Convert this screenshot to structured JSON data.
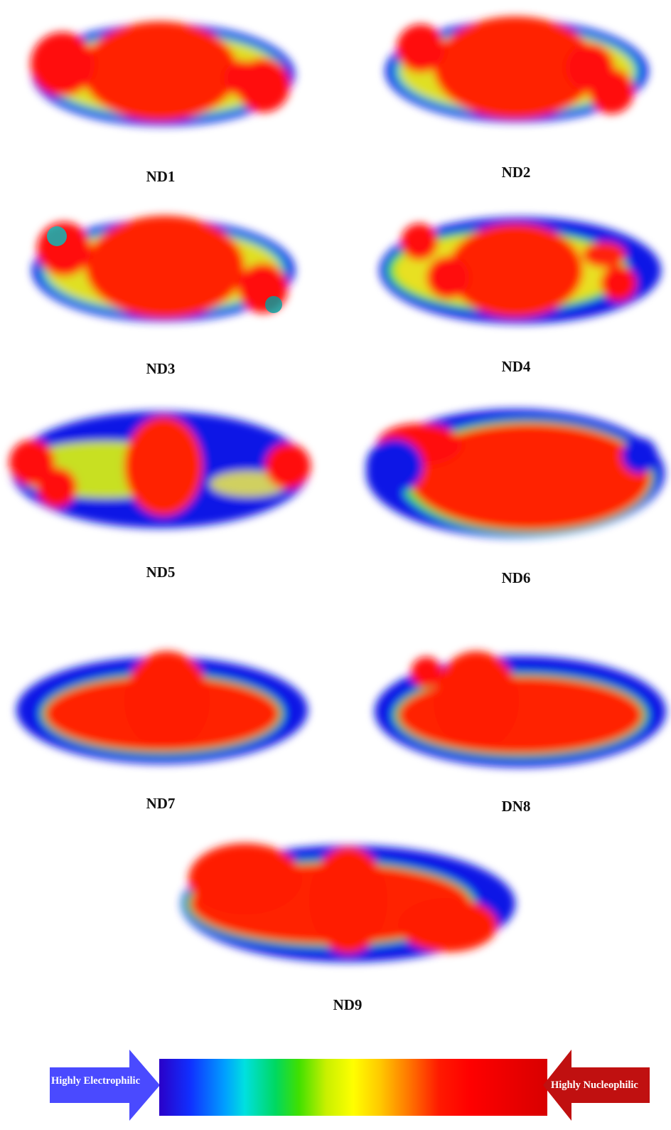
{
  "colors": {
    "negative_red": "#e00000",
    "positive_blue": "#0a14e6",
    "electrophilic_arrow": "#4a4aff",
    "nucleophilic_arrow": "#c01010"
  },
  "molecules": [
    {
      "label": "ND1"
    },
    {
      "label": "ND2"
    },
    {
      "label": "ND3"
    },
    {
      "label": "ND4"
    },
    {
      "label": "ND5"
    },
    {
      "label": "ND6"
    },
    {
      "label": "ND7"
    },
    {
      "label": "DN8"
    },
    {
      "label": "ND9"
    }
  ],
  "color_scale": {
    "left_label": "Highly Electrophilic",
    "right_label": "Highly Nucleophilic"
  }
}
